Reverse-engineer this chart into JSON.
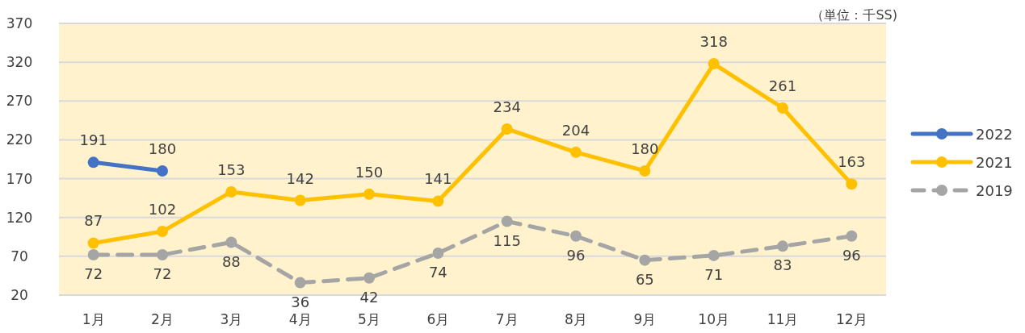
{
  "chart_data": {
    "type": "line",
    "annotations": [
      "（単位：千SS)"
    ],
    "categories": [
      "1月",
      "2月",
      "3月",
      "4月",
      "5月",
      "6月",
      "7月",
      "8月",
      "9月",
      "10月",
      "11月",
      "12月"
    ],
    "series": [
      {
        "name": "2022",
        "color": "#4472c4",
        "line_style": "solid",
        "values": [
          191,
          180,
          null,
          null,
          null,
          null,
          null,
          null,
          null,
          null,
          null,
          null
        ]
      },
      {
        "name": "2021",
        "color": "#ffc000",
        "line_style": "solid",
        "values": [
          87,
          102,
          153,
          142,
          150,
          141,
          234,
          204,
          180,
          318,
          261,
          163
        ]
      },
      {
        "name": "2019",
        "color": "#a5a5a5",
        "line_style": "dashed",
        "values": [
          72,
          72,
          88,
          36,
          42,
          74,
          115,
          96,
          65,
          71,
          83,
          96
        ]
      }
    ],
    "ylim": [
      20,
      370
    ],
    "yticks": [
      20,
      70,
      120,
      170,
      220,
      270,
      320,
      370
    ],
    "grid": "y",
    "legend": "right",
    "marker": "circle",
    "data_labels": true
  }
}
